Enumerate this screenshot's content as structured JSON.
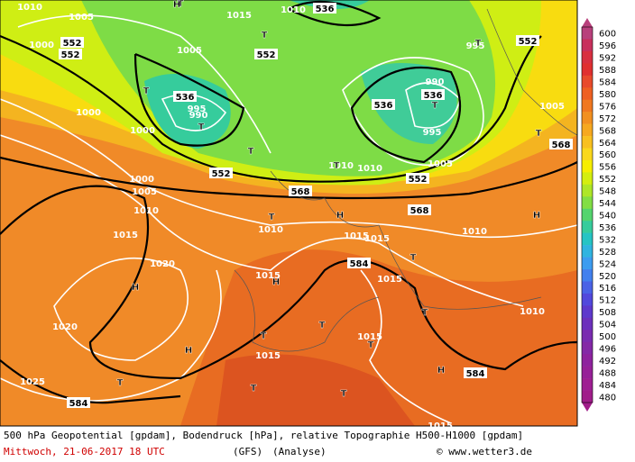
{
  "map": {
    "labels": [
      "552",
      "552",
      "552",
      "552",
      "552",
      "552",
      "536",
      "536",
      "536",
      "536",
      "568",
      "568",
      "568",
      "584",
      "584",
      "584",
      "1010",
      "1010",
      "1010",
      "1010",
      "1010",
      "1005",
      "1005",
      "1005",
      "1005",
      "1005",
      "1015",
      "1015",
      "1015",
      "1015",
      "1015",
      "1015",
      "1015",
      "1015",
      "1015",
      "1000",
      "1000",
      "1000",
      "1000",
      "995",
      "995",
      "995",
      "990",
      "990",
      "1020",
      "1020",
      "1025",
      "1010",
      "1010",
      "1010",
      "T",
      "T",
      "T",
      "T",
      "T",
      "T",
      "T",
      "T",
      "T",
      "T",
      "T",
      "T",
      "T",
      "T",
      "T",
      "T",
      "T",
      "T",
      "H",
      "H",
      "H",
      "H",
      "H",
      "H",
      "H"
    ]
  },
  "legend": {
    "labels": [
      "600",
      "596",
      "592",
      "588",
      "584",
      "580",
      "576",
      "572",
      "568",
      "564",
      "560",
      "556",
      "552",
      "548",
      "544",
      "540",
      "536",
      "532",
      "528",
      "524",
      "520",
      "516",
      "512",
      "508",
      "504",
      "500",
      "496",
      "492",
      "488",
      "484",
      "480"
    ],
    "colors": [
      "#b8407c",
      "#c8305c",
      "#d83040",
      "#e03030",
      "#e84a2c",
      "#ee6022",
      "#f07820",
      "#f29020",
      "#f6a820",
      "#f8c020",
      "#fad81c",
      "#f6ee00",
      "#d4ee10",
      "#aee628",
      "#82de44",
      "#54d46e",
      "#36cc9c",
      "#26c4c4",
      "#30b4e0",
      "#3c9cf0",
      "#4280ee",
      "#4a62e6",
      "#5248dc",
      "#5e38cc",
      "#6c30bc",
      "#7a2cb0",
      "#8428a6",
      "#8e229e",
      "#962098",
      "#9e1e92",
      "#a01e8a"
    ]
  },
  "footer": {
    "line1": "500 hPa Geopotential [gpdam], Bodendruck [hPa], relative Topographie H500-H1000 [gpdam]",
    "date": "Mittwoch, 21-06-2017  18 UTC",
    "model": "(GFS)",
    "run": "(Analyse)",
    "credit": "© www.wetter3.de"
  }
}
